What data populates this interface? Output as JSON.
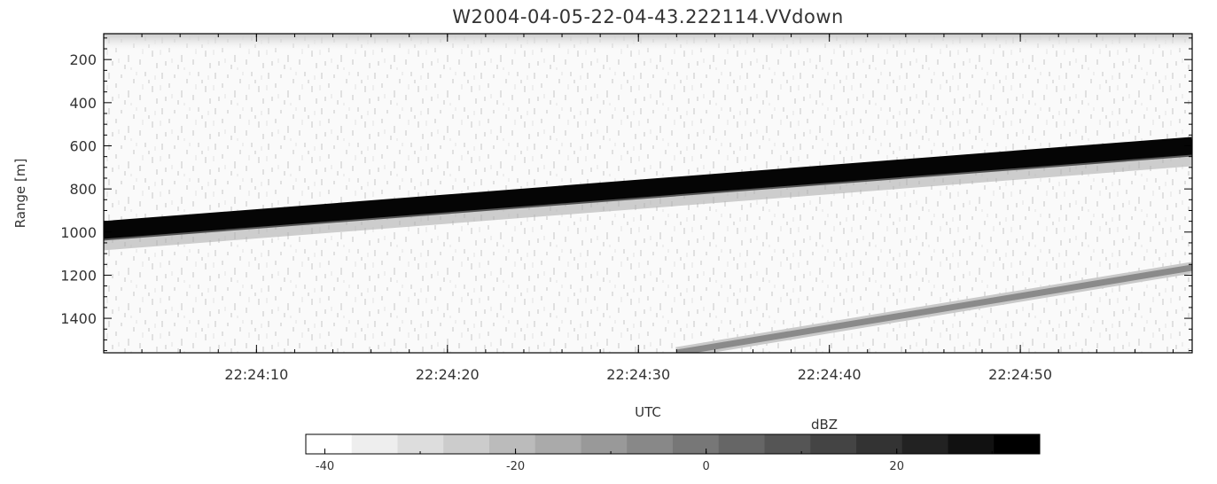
{
  "chart_data": {
    "type": "heatmap",
    "title": "W2004-04-05-22-04-43.222114.VVdown",
    "xlabel": "UTC",
    "ylabel": "Range [m]",
    "x_range": [
      "22:24:02",
      "22:24:59"
    ],
    "x_ticks": [
      "22:24:10",
      "22:24:20",
      "22:24:30",
      "22:24:40",
      "22:24:50"
    ],
    "y_range": [
      80,
      1560
    ],
    "y_ticks": [
      200,
      400,
      600,
      800,
      1000,
      1200,
      1400
    ],
    "y_reversed": true,
    "features": [
      {
        "kind": "strong band",
        "points": [
          {
            "time": "22:24:02",
            "range_m": 990
          },
          {
            "time": "22:24:59",
            "range_m": 600
          }
        ],
        "dbz": 30
      },
      {
        "kind": "weak band",
        "points": [
          {
            "time": "22:24:32",
            "range_m": 1560
          },
          {
            "time": "22:24:59",
            "range_m": 1165
          }
        ],
        "dbz": 0
      }
    ],
    "colorbar": {
      "label": "dBZ",
      "range": [
        -42,
        35
      ],
      "ticks": [
        -40,
        -20,
        0,
        20
      ],
      "colormap": "grayscale white-to-black"
    }
  }
}
